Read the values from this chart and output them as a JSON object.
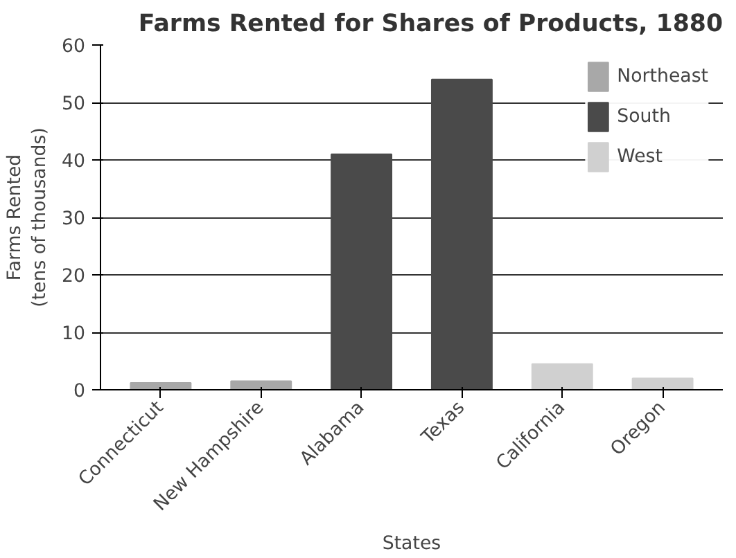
{
  "chart_data": {
    "type": "bar",
    "title": "Farms Rented for Shares of Products, 1880",
    "xlabel": "States",
    "ylabel": "Farms Rented\n(tens of thousands)",
    "categories": [
      "Connecticut",
      "New Hampshire",
      "Alabama",
      "Texas",
      "California",
      "Oregon"
    ],
    "series": [
      {
        "name": "Northeast",
        "color": "#a8a8a8",
        "values": [
          1.2,
          1.5,
          null,
          null,
          null,
          null
        ]
      },
      {
        "name": "South",
        "color": "#4a4a4a",
        "values": [
          null,
          null,
          41,
          54,
          null,
          null
        ]
      },
      {
        "name": "West",
        "color": "#d0d0d0",
        "values": [
          null,
          null,
          null,
          null,
          4.5,
          2
        ]
      }
    ],
    "ylim": [
      0,
      60
    ],
    "yticks": [
      0,
      10,
      20,
      30,
      40,
      50,
      60
    ],
    "grid": "y",
    "legend": "top right"
  }
}
